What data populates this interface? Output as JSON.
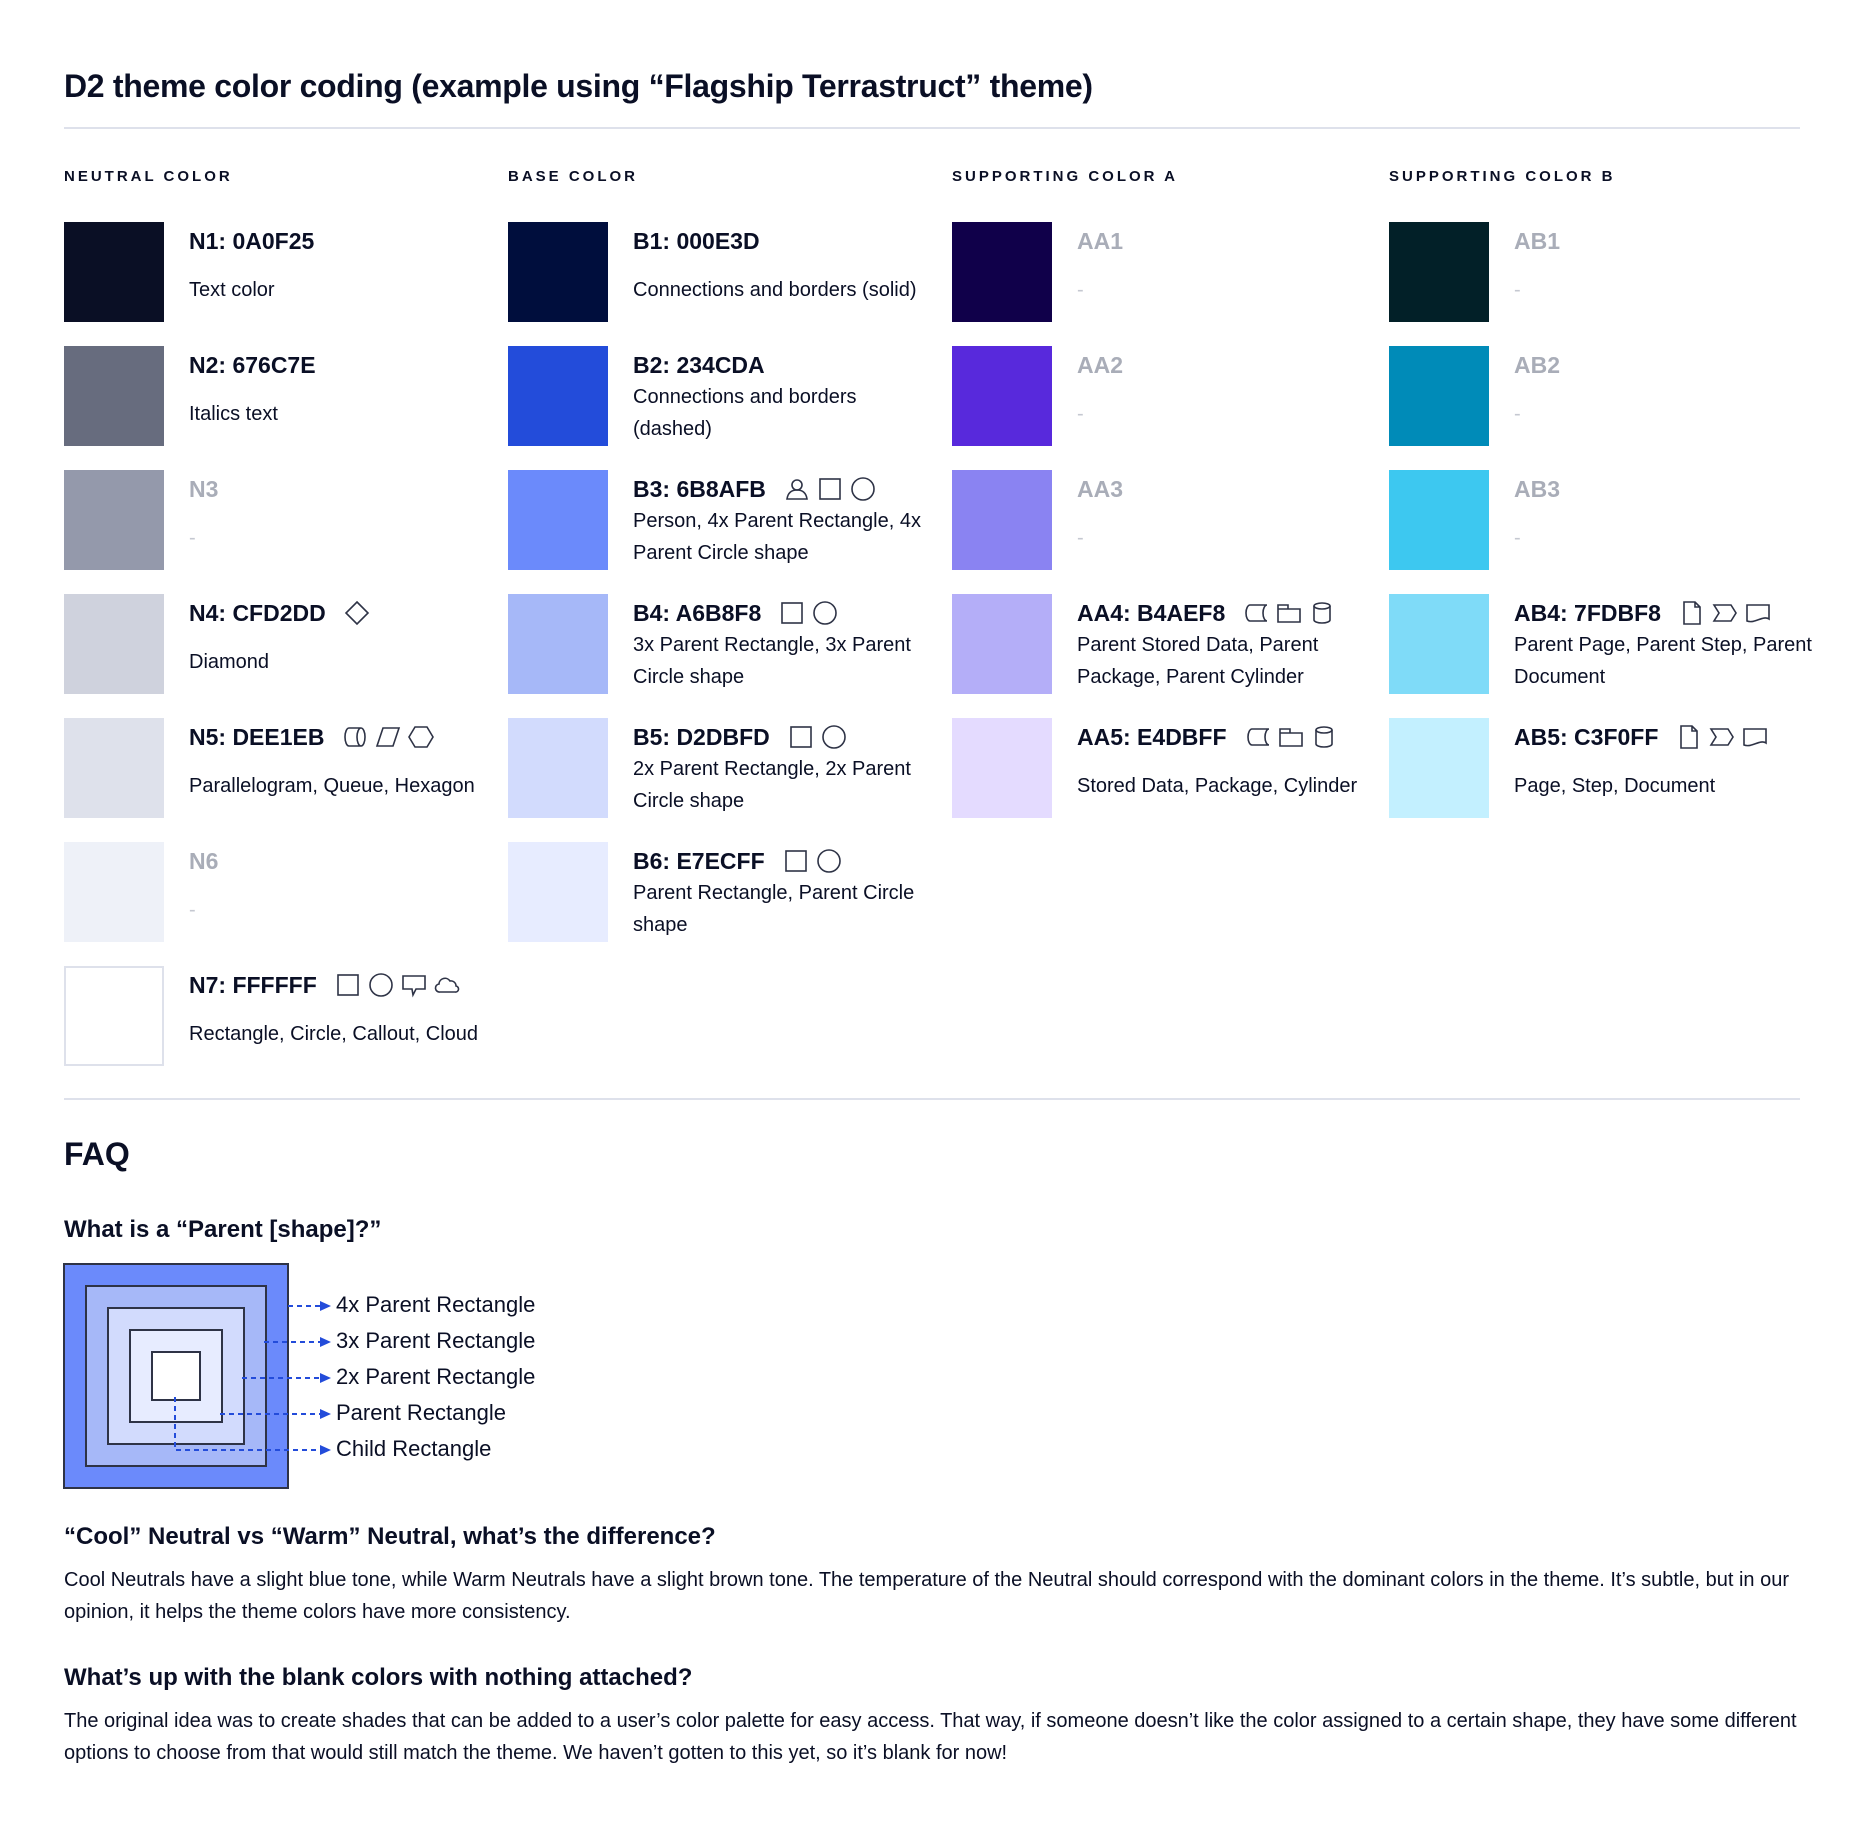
{
  "title": "D2 theme color coding (example using “Flagship Terrastruct” theme)",
  "columns": [
    {
      "header": "NEUTRAL COLOR",
      "entries": [
        {
          "label": "N1: 0A0F25",
          "color": "#0A0F25",
          "desc": "Text color",
          "icons": []
        },
        {
          "label": "N2: 676C7E",
          "color": "#676C7E",
          "desc": "Italics text",
          "icons": []
        },
        {
          "label": "N3",
          "color": "#9499AB",
          "desc": "-",
          "icons": [],
          "muted": true
        },
        {
          "label": "N4: CFD2DD",
          "color": "#CFD2DD",
          "desc": "Diamond",
          "icons": [
            "diamond"
          ]
        },
        {
          "label": "N5: DEE1EB",
          "color": "#DEE1EB",
          "desc": "Parallelogram, Queue, Hexagon",
          "icons": [
            "queue",
            "parallelogram",
            "hexagon"
          ]
        },
        {
          "label": "N6",
          "color": "#EEF1F8",
          "desc": "-",
          "icons": [],
          "muted": true
        },
        {
          "label": "N7: FFFFFF",
          "color": "#FFFFFF",
          "desc": "Rectangle, Circle, Callout, Cloud",
          "icons": [
            "rectangle",
            "circle",
            "callout",
            "cloud"
          ]
        }
      ]
    },
    {
      "header": "BASE COLOR",
      "entries": [
        {
          "label": "B1: 000E3D",
          "color": "#000E3D",
          "desc": "Connections and borders (solid)",
          "icons": []
        },
        {
          "label": "B2: 234CDA",
          "color": "#234CDA",
          "desc": "Connections and borders (dashed)",
          "icons": []
        },
        {
          "label": "B3: 6B8AFB",
          "color": "#6B8AFB",
          "desc": "Person, 4x Parent Rectangle, 4x Parent Circle shape",
          "icons": [
            "person",
            "rectangle",
            "circle"
          ]
        },
        {
          "label": "B4: A6B8F8",
          "color": "#A6B8F8",
          "desc": "3x Parent Rectangle, 3x Parent Circle shape",
          "icons": [
            "rectangle",
            "circle"
          ]
        },
        {
          "label": "B5: D2DBFD",
          "color": "#D2DBFD",
          "desc": "2x Parent Rectangle, 2x Parent Circle shape",
          "icons": [
            "rectangle",
            "circle"
          ]
        },
        {
          "label": "B6: E7ECFF",
          "color": "#E7ECFF",
          "desc": "Parent Rectangle, Parent Circle shape",
          "icons": [
            "rectangle",
            "circle"
          ]
        }
      ]
    },
    {
      "header": "SUPPORTING COLOR A",
      "entries": [
        {
          "label": "AA1",
          "color": "#10004A",
          "desc": "-",
          "icons": [],
          "muted": true
        },
        {
          "label": "AA2",
          "color": "#5829DC",
          "desc": "-",
          "icons": [],
          "muted": true
        },
        {
          "label": "AA3",
          "color": "#8A83F2",
          "desc": "-",
          "icons": [],
          "muted": true
        },
        {
          "label": "AA4: B4AEF8",
          "color": "#B4AEF8",
          "desc": "Parent Stored Data, Parent Package,  Parent Cylinder",
          "icons": [
            "stored_data",
            "package",
            "cylinder"
          ]
        },
        {
          "label": "AA5: E4DBFF",
          "color": "#E4DBFF",
          "desc": "Stored Data, Package, Cylinder",
          "icons": [
            "stored_data",
            "package",
            "cylinder"
          ]
        }
      ]
    },
    {
      "header": "SUPPORTING COLOR B",
      "entries": [
        {
          "label": "AB1",
          "color": "#022028",
          "desc": "-",
          "icons": [],
          "muted": true
        },
        {
          "label": "AB2",
          "color": "#008BB8",
          "desc": "-",
          "icons": [],
          "muted": true
        },
        {
          "label": "AB3",
          "color": "#3DC8F0",
          "desc": "-",
          "icons": [],
          "muted": true
        },
        {
          "label": "AB4: 7FDBF8",
          "color": "#7FDBF8",
          "desc": "Parent Page, Parent Step, Parent Document",
          "icons": [
            "page",
            "step",
            "document"
          ]
        },
        {
          "label": "AB5: C3F0FF",
          "color": "#C3F0FF",
          "desc": "Page, Step, Document",
          "icons": [
            "page",
            "step",
            "document"
          ]
        }
      ]
    }
  ],
  "faq": {
    "title": "FAQ",
    "q1": "What is a “Parent [shape]?”",
    "diagram": {
      "labels": [
        "4x Parent Rectangle",
        "3x Parent Rectangle",
        "2x Parent Rectangle",
        "Parent Rectangle",
        "Child Rectangle"
      ],
      "fills": [
        "#6B8AFB",
        "#A6B8F8",
        "#D2DBFD",
        "#E7ECFF",
        "#FFFFFF"
      ],
      "arrow_color": "#234CDA"
    },
    "q2": "“Cool” Neutral vs “Warm” Neutral, what’s the difference?",
    "a2": "Cool Neutrals have a slight blue tone, while Warm Neutrals have a slight brown tone. The temperature of the Neutral should correspond with the dominant colors in the theme. It’s subtle, but in our opinion, it helps the theme colors have more consistency.",
    "q3": "What’s up with the blank colors with nothing attached?",
    "a3": "The original idea was to create shades that can be added to a user’s color palette for easy access. That way, if someone doesn’t like the color assigned to a certain shape, they have some different options to choose from that would still match the theme. We haven’t gotten to this yet, so it’s blank for now!"
  }
}
